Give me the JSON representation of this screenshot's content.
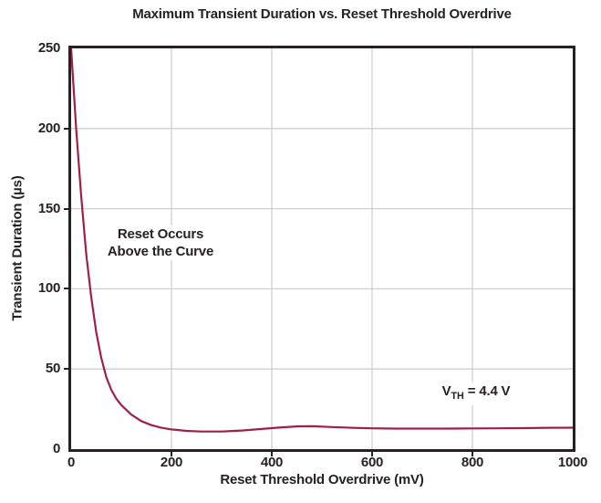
{
  "colors": {
    "ink": "#262223",
    "grid": "#cfcfcf",
    "curve": "#A01E4C",
    "background": "#ffffff"
  },
  "chart_data": {
    "type": "line",
    "title": "Maximum Transient Duration vs. Reset Threshold Overdrive",
    "xlabel": "Reset Threshold Overdrive (mV)",
    "ylabel": "Transient Duration (µs)",
    "xlim": [
      0,
      1000
    ],
    "ylim": [
      0,
      250
    ],
    "x_ticks": [
      0,
      200,
      400,
      600,
      800,
      1000
    ],
    "y_ticks": [
      0,
      50,
      100,
      150,
      200,
      250
    ],
    "grid": true,
    "legend": "none",
    "series": [
      {
        "name": "maximum-transient-duration",
        "color": "#A01E4C",
        "points": [
          [
            0,
            250
          ],
          [
            10,
            200
          ],
          [
            20,
            158
          ],
          [
            30,
            122
          ],
          [
            40,
            95
          ],
          [
            50,
            73
          ],
          [
            60,
            57
          ],
          [
            70,
            45
          ],
          [
            80,
            37
          ],
          [
            90,
            31.5
          ],
          [
            100,
            27.5
          ],
          [
            120,
            21.5
          ],
          [
            140,
            17.5
          ],
          [
            160,
            15
          ],
          [
            180,
            13.3
          ],
          [
            200,
            12.3
          ],
          [
            230,
            11.4
          ],
          [
            260,
            11
          ],
          [
            300,
            11
          ],
          [
            340,
            11.6
          ],
          [
            380,
            12.6
          ],
          [
            420,
            13.6
          ],
          [
            450,
            14.2
          ],
          [
            480,
            14.3
          ],
          [
            520,
            13.8
          ],
          [
            560,
            13.3
          ],
          [
            600,
            13
          ],
          [
            650,
            12.8
          ],
          [
            700,
            12.8
          ],
          [
            750,
            12.8
          ],
          [
            800,
            12.9
          ],
          [
            850,
            13
          ],
          [
            900,
            13.1
          ],
          [
            950,
            13.3
          ],
          [
            1000,
            13.4
          ]
        ]
      }
    ],
    "annotations": {
      "reset_note": {
        "line1": "Reset Occurs",
        "line2": "Above the Curve",
        "x_mv": 178,
        "y_us": 128
      },
      "vth_note": {
        "prefix": "V",
        "sub": "TH",
        "suffix": " = 4.4 V",
        "x_mv": 807,
        "y_us": 34
      }
    }
  }
}
